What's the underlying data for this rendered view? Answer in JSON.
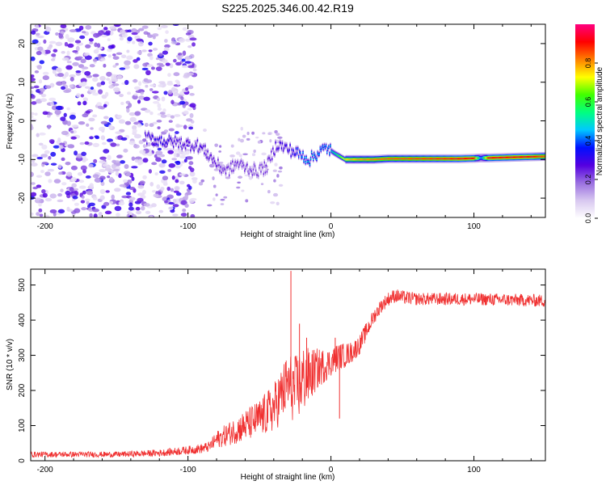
{
  "title": "S225.2025.346.00.42.R19",
  "chart_data": [
    {
      "type": "heatmap",
      "title": "S225.2025.346.00.42.R19",
      "xlabel": "Height of straight line (km)",
      "ylabel": "Frequency (Hz)",
      "xlim": [
        -210,
        150
      ],
      "ylim": [
        -25,
        25
      ],
      "xticks": [
        -200,
        -100,
        0,
        100
      ],
      "xtick_labels": [
        "-200",
        "-100",
        "0",
        "100"
      ],
      "yticks": [
        -20,
        -10,
        0,
        10,
        20
      ],
      "ytick_labels": [
        "-20",
        "-10",
        "0",
        "10",
        "20"
      ],
      "colorbar": {
        "label": "Normalized spectral amplitude",
        "range": [
          0,
          1
        ],
        "ticks": [
          0,
          0.2,
          0.4,
          0.6,
          0.8
        ],
        "tick_labels": [
          "0.0",
          "0.2",
          "0.4",
          "0.6",
          "0.8"
        ],
        "colors": [
          "#ffffff",
          "#d8c8f0",
          "#9a6fe0",
          "#5500e0",
          "#0010ff",
          "#00c8ff",
          "#00ff80",
          "#40ff00",
          "#ffff00",
          "#ff8000",
          "#ff0000",
          "#ff0080"
        ]
      },
      "ridge": {
        "x": [
          -130,
          -120,
          -110,
          -100,
          -92,
          -85,
          -78,
          -72,
          -66,
          -60,
          -52,
          -45,
          -38,
          -32,
          -26,
          -20,
          -15,
          -8,
          -3,
          3,
          10,
          20,
          30,
          40,
          50,
          60,
          70,
          80,
          90,
          100,
          105,
          110,
          120,
          130,
          140,
          150
        ],
        "freq": [
          -4.5,
          -5,
          -5.5,
          -6,
          -6.5,
          -9,
          -12,
          -13,
          -11,
          -12,
          -13,
          -12,
          -6,
          -7,
          -8,
          -9,
          -10,
          -8,
          -7,
          -8.5,
          -10,
          -10,
          -10,
          -9.8,
          -9.8,
          -9.8,
          -9.8,
          -9.8,
          -9.8,
          -9.7,
          -9.6,
          -9.6,
          -9.5,
          -9.4,
          -9.3,
          -9.2
        ],
        "amplitude": [
          0.3,
          0.35,
          0.3,
          0.28,
          0.3,
          0.28,
          0.26,
          0.25,
          0.25,
          0.25,
          0.22,
          0.25,
          0.3,
          0.32,
          0.35,
          0.45,
          0.5,
          0.45,
          0.45,
          0.55,
          0.75,
          0.8,
          0.82,
          0.84,
          0.85,
          0.86,
          0.87,
          0.88,
          0.9,
          0.9,
          0.4,
          0.9,
          0.9,
          0.9,
          0.9,
          0.85
        ]
      },
      "noise_extent_x": [
        -210,
        -95
      ]
    },
    {
      "type": "line",
      "xlabel": "Height of straight line (km)",
      "ylabel": "SNR (10 * v/v)",
      "xlim": [
        -210,
        150
      ],
      "ylim": [
        0,
        545
      ],
      "xticks": [
        -200,
        -100,
        0,
        100
      ],
      "xtick_labels": [
        "-200",
        "-100",
        "0",
        "100"
      ],
      "yticks": [
        0,
        100,
        200,
        300,
        400,
        500
      ],
      "ytick_labels": [
        "0",
        "100",
        "200",
        "300",
        "400",
        "500"
      ],
      "color": "#f03030",
      "envelope": {
        "x": [
          -210,
          -150,
          -120,
          -100,
          -90,
          -85,
          -80,
          -70,
          -60,
          -50,
          -40,
          -30,
          -25,
          -20,
          -15,
          -10,
          -5,
          0,
          5,
          10,
          15,
          20,
          25,
          30,
          35,
          40,
          45,
          50,
          60,
          80,
          100,
          120,
          150
        ],
        "mean": [
          18,
          18,
          22,
          30,
          35,
          40,
          60,
          80,
          100,
          120,
          150,
          220,
          200,
          230,
          240,
          260,
          270,
          280,
          295,
          300,
          310,
          330,
          370,
          410,
          440,
          460,
          470,
          465,
          460,
          460,
          460,
          458,
          455
        ],
        "spread": [
          8,
          8,
          10,
          12,
          14,
          15,
          25,
          35,
          45,
          55,
          70,
          90,
          100,
          100,
          80,
          60,
          50,
          40,
          40,
          35,
          30,
          28,
          25,
          22,
          20,
          20,
          20,
          20,
          18,
          18,
          18,
          18,
          18
        ]
      },
      "spikes": [
        {
          "x": -28,
          "y": 540
        },
        {
          "x": -22,
          "y": 390
        },
        {
          "x": -17,
          "y": 350
        },
        {
          "x": 6,
          "y": 120
        },
        {
          "x": 3,
          "y": 350
        }
      ]
    }
  ]
}
